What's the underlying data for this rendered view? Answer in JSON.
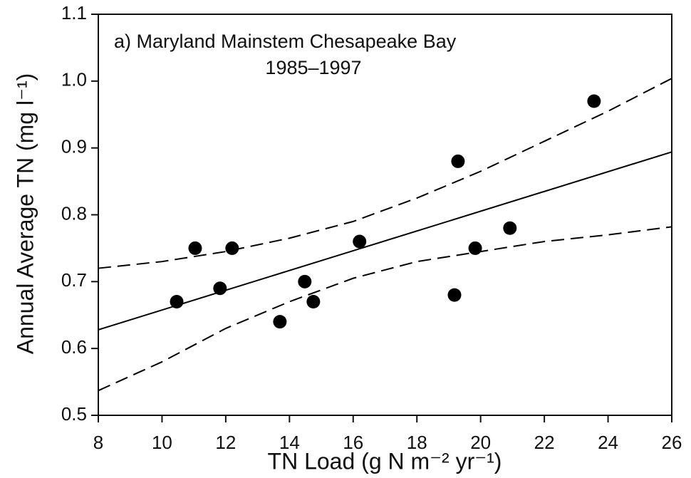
{
  "chart_data": {
    "type": "scatter",
    "title": "a) Maryland Mainstem Chesapeake Bay",
    "subtitle": "1985–1997",
    "x_label": "TN Load (g N m⁻² yr⁻¹)",
    "y_label": "Annual Average TN (mg l⁻¹)",
    "xlim": [
      8,
      26
    ],
    "xticks": [
      8,
      10,
      12,
      14,
      16,
      18,
      20,
      22,
      24,
      26
    ],
    "ylim": [
      0.5,
      1.1
    ],
    "yticks": [
      0.5,
      0.6,
      0.7,
      0.8,
      0.9,
      {
        "value": 1,
        "label": "1.0"
      },
      1.1
    ],
    "color": "#000000",
    "points": {
      "x": [
        10.46,
        11.04,
        11.82,
        12.2,
        13.7,
        14.48,
        14.75,
        16.2,
        19.18,
        19.29,
        19.83,
        20.92,
        23.56
      ],
      "y": [
        0.67,
        0.75,
        0.69,
        0.75,
        0.64,
        0.7,
        0.67,
        0.76,
        0.68,
        0.88,
        0.75,
        0.78,
        0.97
      ]
    },
    "lines": [
      {
        "style": "solid",
        "x": [
          8,
          26
        ],
        "y": [
          0.628,
          0.894
        ]
      },
      {
        "style": "dashed",
        "x": [
          8,
          10,
          12,
          14,
          16,
          18,
          20,
          22,
          24,
          26
        ],
        "y": [
          0.72,
          0.73,
          0.745,
          0.765,
          0.79,
          0.825,
          0.865,
          0.91,
          0.955,
          1.004
        ]
      },
      {
        "style": "dashed",
        "x": [
          8,
          10,
          12,
          14,
          16,
          18,
          20,
          22,
          24,
          26
        ],
        "y": [
          0.537,
          0.58,
          0.63,
          0.67,
          0.705,
          0.73,
          0.745,
          0.76,
          0.77,
          0.782
        ]
      }
    ]
  }
}
